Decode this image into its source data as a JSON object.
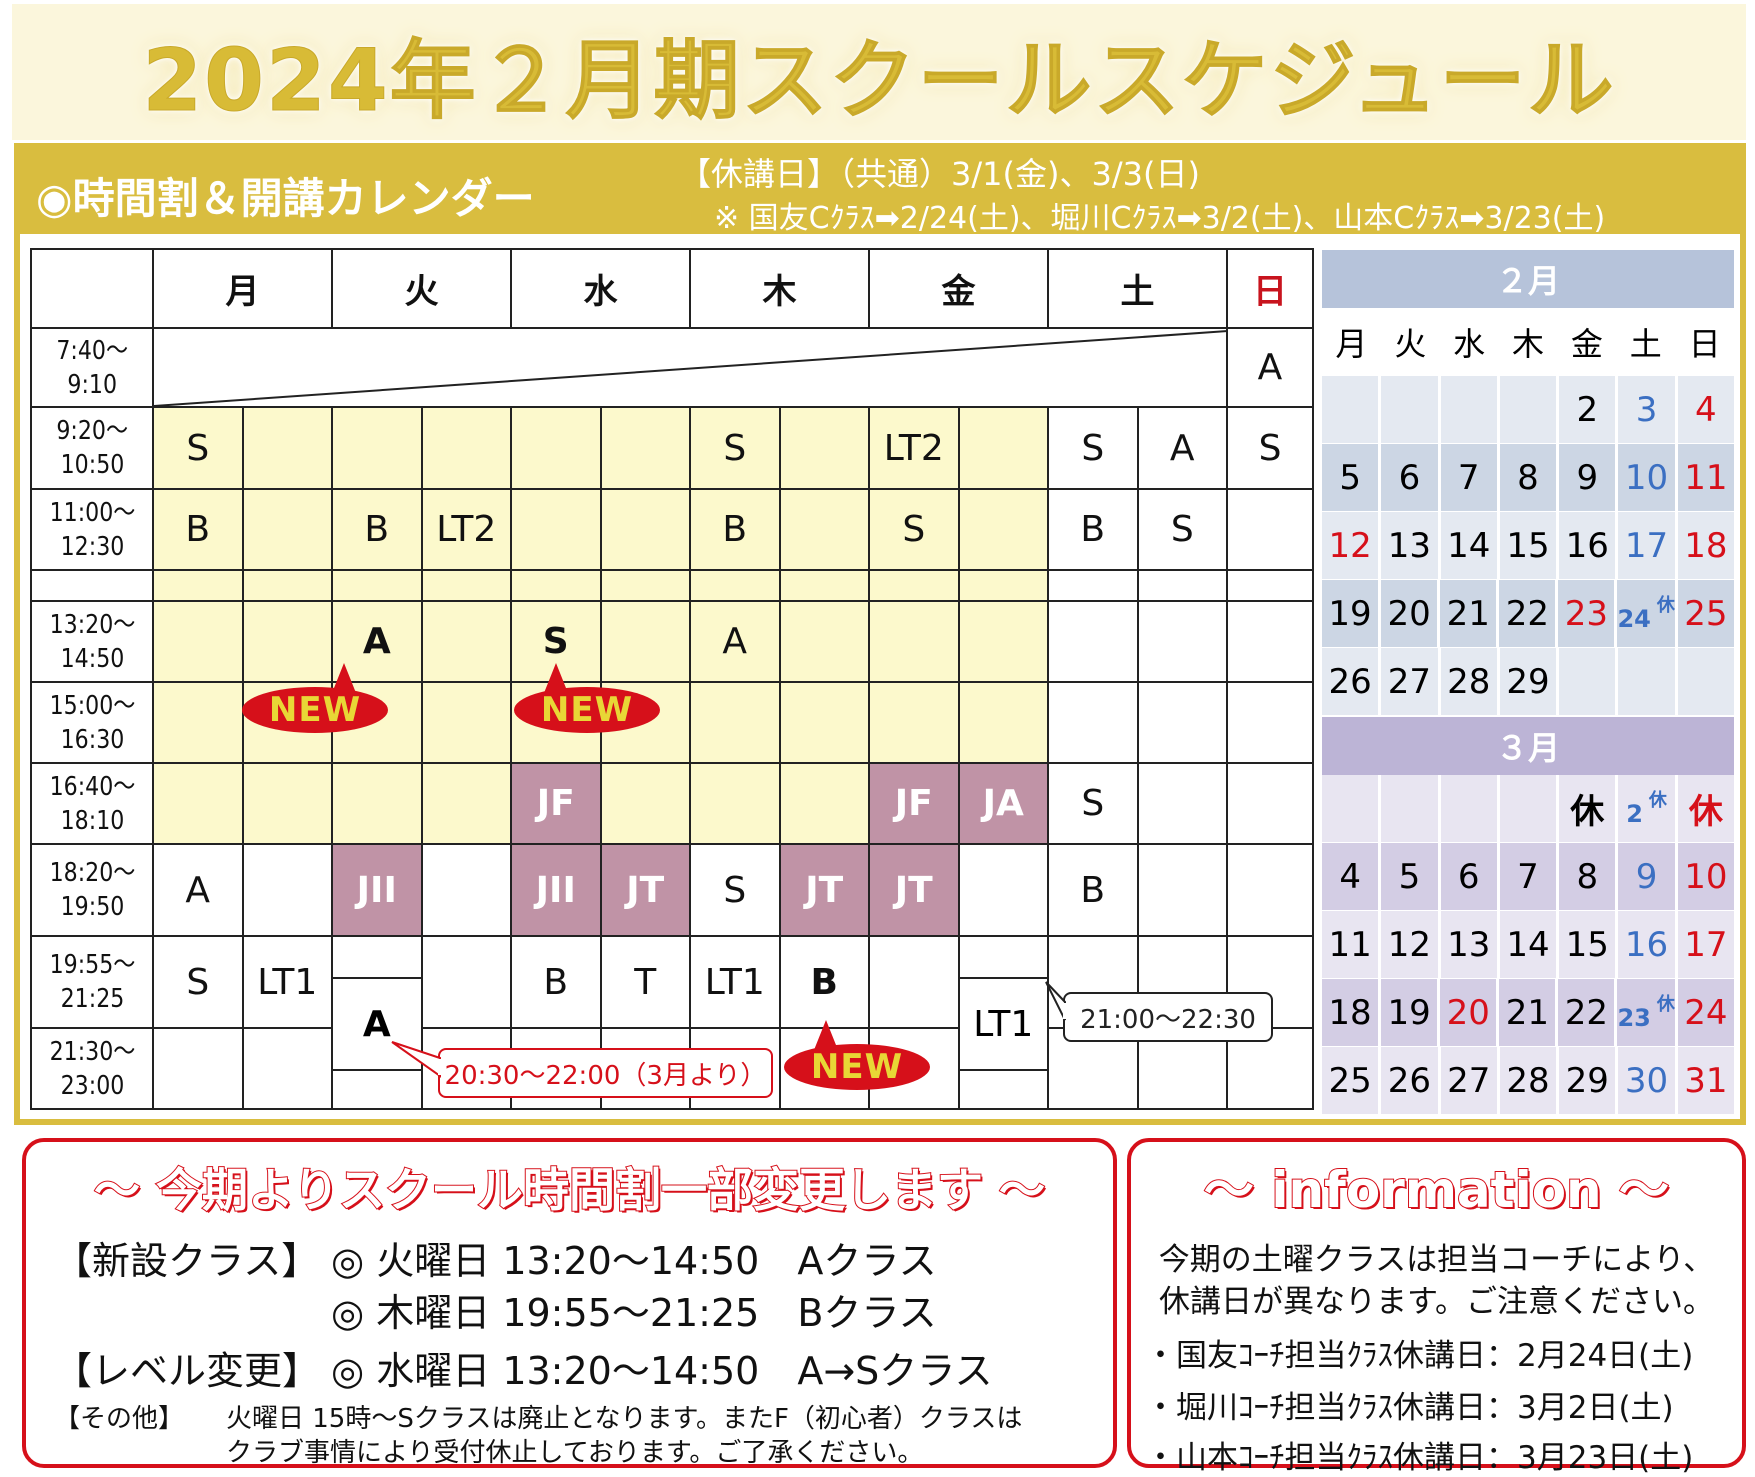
{
  "title": "2024年２月期スクールスケジュール",
  "section": {
    "title": "◉時間割＆開講カレンダー",
    "holiday_common": "【休講日】（共通）3/1(金)、3/3(日)",
    "holiday_coach": "※ 国友Cｸﾗｽ➡2/24(土)、堀川Cｸﾗｽ➡3/2(土)、山本Cｸﾗｽ➡3/23(土)"
  },
  "colors": {
    "gold": "#d9bd3f",
    "yellow": "#fcf9cc",
    "mauve": "#c093a6",
    "red": "#d6101a",
    "blue": "#3b6fc2"
  },
  "schedule": {
    "days": [
      "月",
      "火",
      "水",
      "木",
      "金",
      "土",
      "日"
    ],
    "rows": [
      {
        "time": [
          "7:40～",
          "9:10"
        ],
        "merged": true,
        "sun": "A"
      },
      {
        "time": [
          "9:20～",
          "10:50"
        ],
        "cells": [
          "S",
          "",
          "",
          "",
          "",
          "",
          "S",
          "",
          "LT2",
          "",
          "S",
          "A",
          "S"
        ],
        "fills": [
          "y",
          "y",
          "y",
          "y",
          "y",
          "y",
          "y",
          "y",
          "y",
          "y",
          "",
          "",
          ""
        ],
        "bold": []
      },
      {
        "time": [
          "11:00～",
          "12:30"
        ],
        "cells": [
          "B",
          "",
          "B",
          "LT2",
          "",
          "",
          "B",
          "",
          "S",
          "",
          "B",
          "S",
          ""
        ],
        "fills": [
          "y",
          "y",
          "y",
          "y",
          "y",
          "y",
          "y",
          "y",
          "y",
          "y",
          "",
          "",
          ""
        ],
        "bold": []
      },
      {
        "time": [
          "",
          ""
        ],
        "cells": [
          "",
          "",
          "",
          "",
          "",
          "",
          "",
          "",
          "",
          "",
          "",
          "",
          ""
        ],
        "fills": [
          "y",
          "y",
          "y",
          "y",
          "y",
          "y",
          "y",
          "y",
          "y",
          "y",
          "",
          "",
          ""
        ],
        "bold": []
      },
      {
        "time": [
          "13:20～",
          "14:50"
        ],
        "cells": [
          "",
          "",
          "A",
          "",
          "S",
          "",
          "A",
          "",
          "",
          "",
          "",
          "",
          ""
        ],
        "fills": [
          "y",
          "y",
          "y",
          "y",
          "y",
          "y",
          "y",
          "y",
          "y",
          "y",
          "",
          "",
          ""
        ],
        "bold": [
          2,
          4
        ]
      },
      {
        "time": [
          "15:00～",
          "16:30"
        ],
        "cells": [
          "",
          "",
          "",
          "",
          "",
          "",
          "",
          "",
          "",
          "",
          "",
          "",
          ""
        ],
        "fills": [
          "y",
          "y",
          "y",
          "y",
          "y",
          "y",
          "y",
          "y",
          "y",
          "y",
          "",
          "",
          ""
        ],
        "bold": []
      },
      {
        "time": [
          "16:40～",
          "18:10"
        ],
        "cells": [
          "",
          "",
          "",
          "",
          "JF",
          "",
          "",
          "",
          "JF",
          "JA",
          "S",
          "",
          ""
        ],
        "fills": [
          "y",
          "y",
          "y",
          "y",
          "m",
          "y",
          "y",
          "y",
          "m",
          "m",
          "",
          "",
          ""
        ],
        "bold": []
      },
      {
        "time": [
          "18:20～",
          "19:50"
        ],
        "cells": [
          "A",
          "",
          "JII",
          "",
          "JII",
          "JT",
          "S",
          "JT",
          "JT",
          "",
          "B",
          "",
          ""
        ],
        "fills": [
          "",
          "",
          "m",
          "",
          "m",
          "m",
          "",
          "m",
          "m",
          "",
          "",
          "",
          ""
        ],
        "bold": []
      },
      {
        "time": [
          "19:55～",
          "21:25"
        ],
        "cells": [
          "S",
          "LT1",
          "",
          "",
          "B",
          "T",
          "LT1",
          "B",
          "",
          "",
          "",
          "",
          ""
        ],
        "fills": [
          "",
          "",
          "",
          "",
          "",
          "",
          "",
          "",
          "",
          "",
          "",
          "",
          ""
        ],
        "bold": [
          7
        ]
      },
      {
        "time": [
          "21:30～",
          "23:00"
        ],
        "cells": [
          "",
          "",
          "",
          "",
          "",
          "",
          "",
          "",
          "",
          "",
          "",
          "",
          ""
        ],
        "fills": [
          "",
          "",
          "",
          "",
          "",
          "",
          "",
          "",
          "",
          "",
          "",
          "",
          ""
        ],
        "bold": []
      }
    ],
    "tue_evening_class": "A",
    "fri_evening_class": "LT1",
    "new_badge": "NEW",
    "tue_note": "20:30～22:00（3月より）",
    "fri_note": "21:00～22:30"
  },
  "calendar": {
    "weekdays": [
      "月",
      "火",
      "水",
      "木",
      "金",
      "土",
      "日"
    ],
    "months": [
      {
        "label": "２月",
        "weeks": [
          [
            {
              "d": ""
            },
            {
              "d": ""
            },
            {
              "d": ""
            },
            {
              "d": ""
            },
            {
              "d": "2"
            },
            {
              "d": "3",
              "c": "blue"
            },
            {
              "d": "4",
              "c": "red"
            }
          ],
          [
            {
              "d": "5"
            },
            {
              "d": "6"
            },
            {
              "d": "7"
            },
            {
              "d": "8"
            },
            {
              "d": "9"
            },
            {
              "d": "10",
              "c": "blue"
            },
            {
              "d": "11",
              "c": "red"
            }
          ],
          [
            {
              "d": "12",
              "c": "red"
            },
            {
              "d": "13"
            },
            {
              "d": "14"
            },
            {
              "d": "15"
            },
            {
              "d": "16"
            },
            {
              "d": "17",
              "c": "blue"
            },
            {
              "d": "18",
              "c": "red"
            }
          ],
          [
            {
              "d": "19"
            },
            {
              "d": "20"
            },
            {
              "d": "21"
            },
            {
              "d": "22"
            },
            {
              "d": "23",
              "c": "red"
            },
            {
              "d": "24",
              "c": "blue",
              "note": "休"
            },
            {
              "d": "25",
              "c": "red"
            }
          ],
          [
            {
              "d": "26"
            },
            {
              "d": "27"
            },
            {
              "d": "28"
            },
            {
              "d": "29"
            },
            {
              "d": ""
            },
            {
              "d": ""
            },
            {
              "d": ""
            }
          ]
        ]
      },
      {
        "label": "３月",
        "weeks": [
          [
            {
              "d": ""
            },
            {
              "d": ""
            },
            {
              "d": ""
            },
            {
              "d": ""
            },
            {
              "d": "休",
              "bold": true
            },
            {
              "d": "2",
              "c": "blue",
              "note": "休"
            },
            {
              "d": "休",
              "c": "red",
              "bold": true
            }
          ],
          [
            {
              "d": "4"
            },
            {
              "d": "5"
            },
            {
              "d": "6"
            },
            {
              "d": "7"
            },
            {
              "d": "8"
            },
            {
              "d": "9",
              "c": "blue"
            },
            {
              "d": "10",
              "c": "red"
            }
          ],
          [
            {
              "d": "11"
            },
            {
              "d": "12"
            },
            {
              "d": "13"
            },
            {
              "d": "14"
            },
            {
              "d": "15"
            },
            {
              "d": "16",
              "c": "blue"
            },
            {
              "d": "17",
              "c": "red"
            }
          ],
          [
            {
              "d": "18"
            },
            {
              "d": "19"
            },
            {
              "d": "20",
              "c": "red"
            },
            {
              "d": "21"
            },
            {
              "d": "22"
            },
            {
              "d": "23",
              "c": "blue",
              "note": "休"
            },
            {
              "d": "24",
              "c": "red"
            }
          ],
          [
            {
              "d": "25"
            },
            {
              "d": "26"
            },
            {
              "d": "27"
            },
            {
              "d": "28"
            },
            {
              "d": "29"
            },
            {
              "d": "30",
              "c": "blue"
            },
            {
              "d": "31",
              "c": "red"
            }
          ]
        ]
      }
    ]
  },
  "changes": {
    "title": "～ 今期よりスクール時間割一部変更します ～",
    "new_label": "【新設クラス】",
    "new_items": [
      "◎ 火曜日 13:20～14:50　Aクラス",
      "◎ 木曜日 19:55～21:25　Bクラス"
    ],
    "level_label": "【レベル変更】",
    "level_item": "◎ 水曜日 13:20～14:50　A→Sクラス",
    "other_label": "【その他】",
    "other_lines": [
      "火曜日 15時～Sクラスは廃止となります。またF（初心者）クラスは",
      "クラブ事情により受付休止しております。ご了承ください。"
    ]
  },
  "information": {
    "title": "～ information ～",
    "intro": [
      "今期の土曜クラスは担当コーチにより、",
      "休講日が異なります。ご注意ください。"
    ],
    "items": [
      "・国友ｺｰﾁ担当ｸﾗｽ休講日：2月24日(土)",
      "・堀川ｺｰﾁ担当ｸﾗｽ休講日：3月2日(土)",
      "・山本ｺｰﾁ担当ｸﾗｽ休講日：3月23日(土)"
    ]
  }
}
